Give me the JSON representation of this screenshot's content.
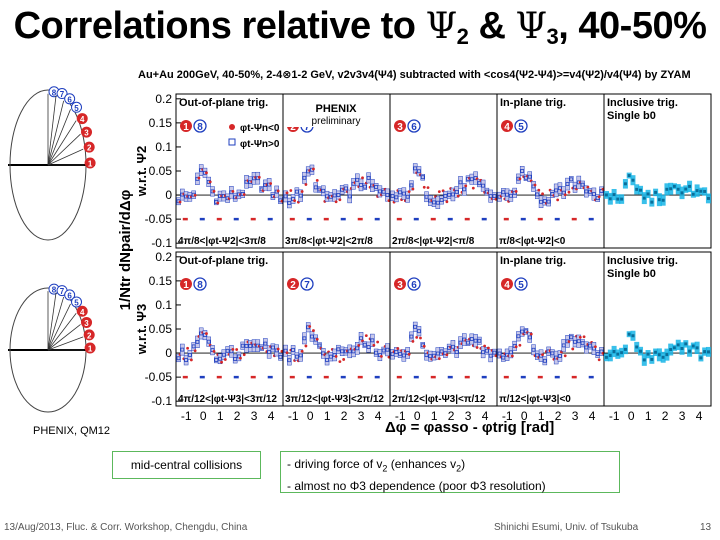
{
  "slide": {
    "title_prefix": "Correlations relative to ",
    "title_psi_a": "Ψ",
    "title_sub_a": "2",
    "title_amp": " & ",
    "title_psi_b": "Ψ",
    "title_sub_b": "3",
    "title_suffix": ", 40-50%",
    "credit": "PHENIX, QM12",
    "mid_central": "mid-central collisions",
    "note_line1_a": "- driving force of v",
    "note_line1_sub": "2",
    "note_line1_b": " (enhances v",
    "note_line1_c": ")",
    "note_line2": "- almost no Φ3 dependence (poor Φ3 resolution)",
    "footer_left": "13/Aug/2013, Fluc. & Corr. Workshop, Chengdu, China",
    "footer_mid": "Shinichi Esumi, Univ. of Tsukuba",
    "page_number": "13"
  },
  "chart_data": {
    "type": "scatter",
    "header": "Au+Au 200GeV, 40-50%, 2-4⊗1-2 GeV, v2v3v4(Ψ4) subtracted with <cos4(Ψ2-Ψ4)>=v4(Ψ2)/v4(Ψ4) by ZYAM",
    "y_axis_title": "1/Ntr dNpair/dΔφ",
    "x_axis_title": "Δφ = φasso - φtrig [rad]",
    "x_ticks": [
      "-1",
      "0",
      "1",
      "2",
      "3",
      "4"
    ],
    "xlim": [
      -1.6,
      4.7
    ],
    "logo": "PHENIX",
    "logo_sub": "preliminary",
    "legend": [
      "φt-Ψn<0",
      "φt-Ψn>0"
    ],
    "series_colors": {
      "neg": "#d62728",
      "pos": "#1f3fbf",
      "inclusive": "#18b5e6"
    },
    "rows": [
      {
        "row_label": "w.r.t. Ψ2",
        "y_ticks": [
          "0.2",
          "0.15",
          "0.1",
          "0.05",
          "0",
          "-0.05",
          "-0.1"
        ],
        "ylim": [
          -0.11,
          0.21
        ],
        "panels": [
          {
            "title": "Out-of-plane trig.",
            "tag_a": "1",
            "tag_b": "8",
            "range": "4π/8<|φt-Ψ2|<3π/8"
          },
          {
            "title": "",
            "tag_a": "2",
            "tag_b": "7",
            "range": "3π/8<|φt-Ψ2|<2π/8"
          },
          {
            "title": "",
            "tag_a": "3",
            "tag_b": "6",
            "range": "2π/8<|φt-Ψ2|<π/8"
          },
          {
            "title": "In-plane trig.",
            "tag_a": "4",
            "tag_b": "5",
            "range": "π/8<|φt-Ψ2|<0"
          },
          {
            "title": "Inclusive trig.",
            "title2": "Single b0",
            "tag_a": "",
            "tag_b": "",
            "range": ""
          }
        ]
      },
      {
        "row_label": "w.r.t. Ψ3",
        "y_ticks": [
          "0.2",
          "0.15",
          "0.1",
          "0.05",
          "0",
          "-0.05",
          "-0.1"
        ],
        "ylim": [
          -0.11,
          0.21
        ],
        "panels": [
          {
            "title": "Out-of-plane trig.",
            "tag_a": "1",
            "tag_b": "8",
            "range": "4π/12<|φt-Ψ3|<3π/12"
          },
          {
            "title": "",
            "tag_a": "2",
            "tag_b": "7",
            "range": "3π/12<|φt-Ψ3|<2π/12"
          },
          {
            "title": "",
            "tag_a": "3",
            "tag_b": "6",
            "range": "2π/12<|φt-Ψ3|<π/12"
          },
          {
            "title": "In-plane trig.",
            "tag_a": "4",
            "tag_b": "5",
            "range": "π/12<|φt-Ψ3|<0"
          },
          {
            "title": "Inclusive trig.",
            "title2": "Single b0",
            "tag_a": "",
            "tag_b": "",
            "range": ""
          }
        ]
      }
    ],
    "diagram_labels_top": [
      "8",
      "7",
      "6",
      "5",
      "4",
      "3",
      "2",
      "1"
    ],
    "diagram_labels_bottom": [
      "8",
      "7",
      "6",
      "5",
      "4",
      "3",
      "2",
      "1"
    ]
  }
}
